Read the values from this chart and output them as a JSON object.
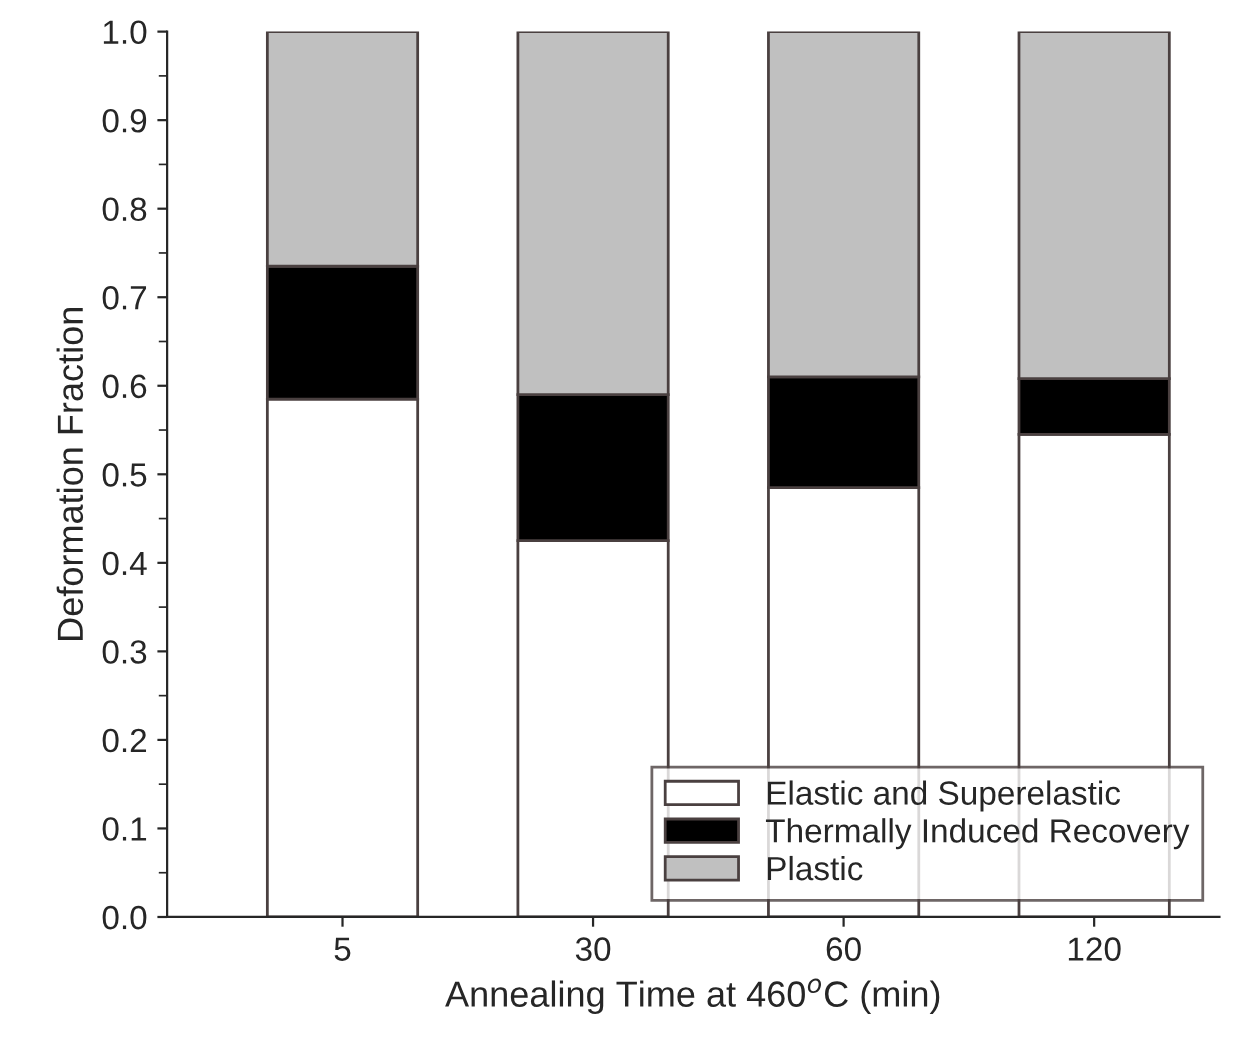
{
  "chart_data": {
    "type": "bar",
    "stacked": true,
    "xlabel": "Annealing Time at 460$^{o}$C (min)",
    "ylabel": "Deformation Fraction",
    "categories": [
      "5",
      "30",
      "60",
      "120"
    ],
    "series": [
      {
        "name": "Elastic and Superelastic",
        "color": "#ffffff",
        "values": [
          0.585,
          0.425,
          0.485,
          0.545
        ]
      },
      {
        "name": "Thermally Induced Recovery",
        "color": "#000000",
        "values": [
          0.15,
          0.165,
          0.125,
          0.063
        ]
      },
      {
        "name": "Plastic",
        "color": "#c0c0c0",
        "values": [
          0.265,
          0.41,
          0.39,
          0.392
        ]
      }
    ],
    "ylim": [
      0,
      1.0
    ],
    "yticks": [
      {
        "value": 0,
        "label": "0.0"
      },
      0.1,
      0.2,
      0.3,
      0.4,
      0.5,
      0.6,
      0.7,
      0.8,
      0.9,
      {
        "value": 1,
        "label": "1.0"
      }
    ],
    "grid": false,
    "legend": "bottom right"
  }
}
